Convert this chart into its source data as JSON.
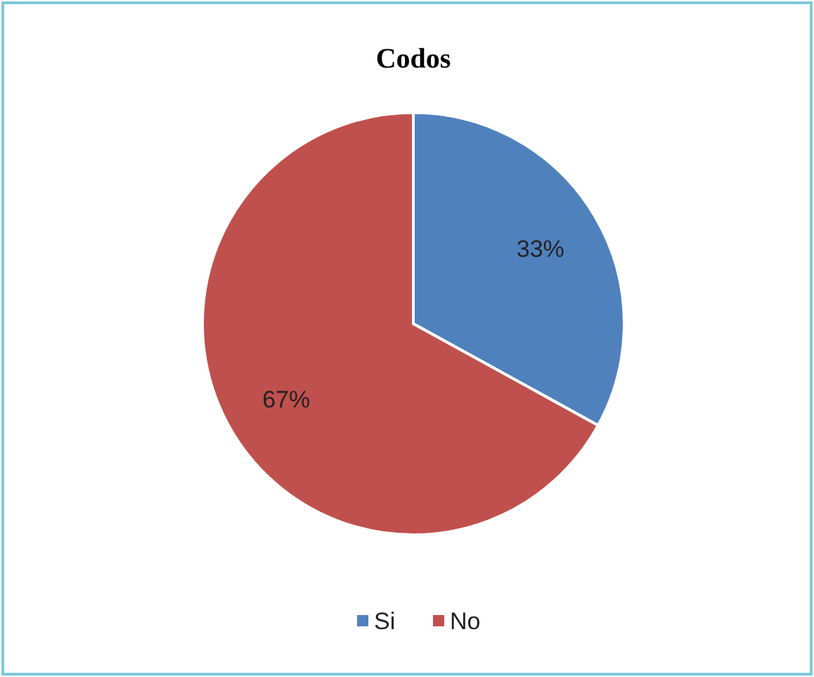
{
  "chart_data": {
    "type": "pie",
    "title": "Codos",
    "categories": [
      "Si",
      "No"
    ],
    "values": [
      33,
      67
    ],
    "value_labels": [
      "33%",
      "67%"
    ],
    "colors": [
      "#4f81bd",
      "#c0504d"
    ],
    "legend": "bottom"
  }
}
